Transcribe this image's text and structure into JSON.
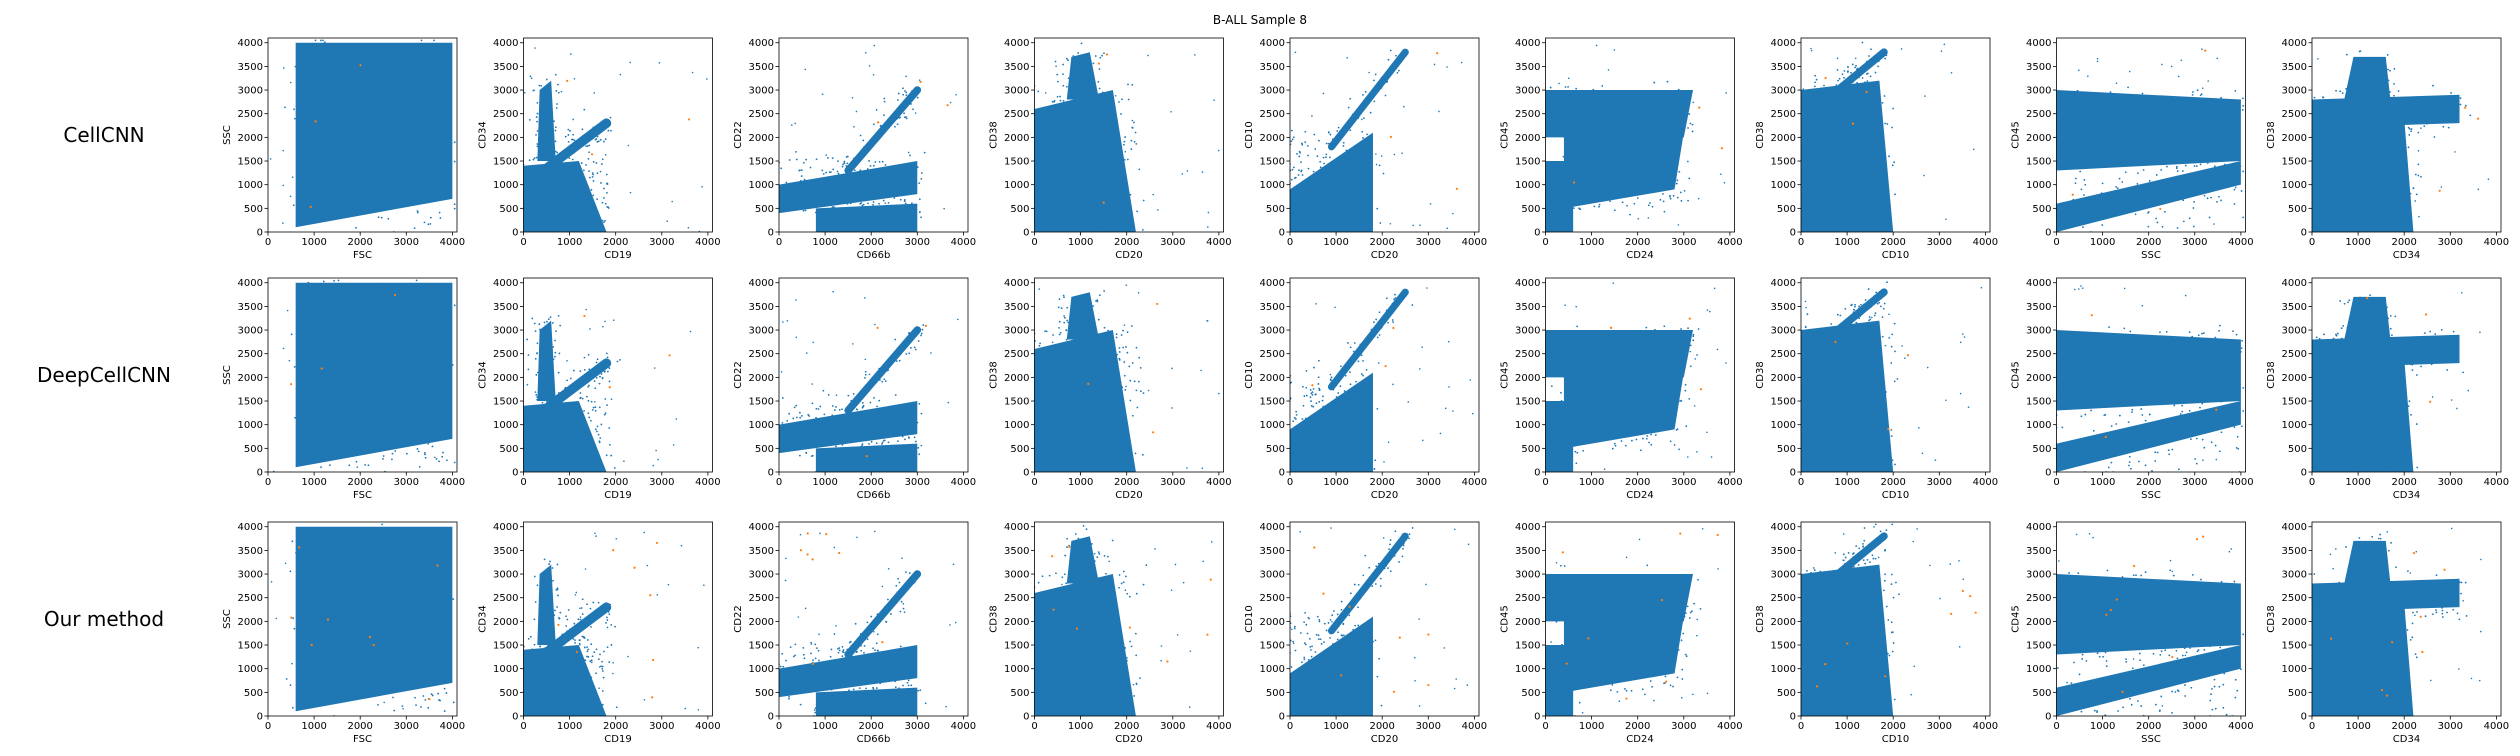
{
  "figure": {
    "title": "B-ALL Sample 8"
  },
  "colors": {
    "primary_cells": "#1f77b4",
    "highlight_cells": "#ff7f0e"
  },
  "chart_data": {
    "type": "scatter",
    "title": "B-ALL Sample 8",
    "rows": [
      "CellCNN",
      "DeepCellCNN",
      "Our method"
    ],
    "panels": [
      {
        "xlabel": "FSC",
        "ylabel": "SSC"
      },
      {
        "xlabel": "CD19",
        "ylabel": "CD34"
      },
      {
        "xlabel": "CD66b",
        "ylabel": "CD22"
      },
      {
        "xlabel": "CD20",
        "ylabel": "CD38"
      },
      {
        "xlabel": "CD20",
        "ylabel": "CD10"
      },
      {
        "xlabel": "CD24",
        "ylabel": "CD45"
      },
      {
        "xlabel": "CD10",
        "ylabel": "CD38"
      },
      {
        "xlabel": "SSC",
        "ylabel": "CD45"
      },
      {
        "xlabel": "CD34",
        "ylabel": "CD38"
      }
    ],
    "xlim": [
      0,
      4100
    ],
    "ylim": [
      0,
      4100
    ],
    "x_ticks": [
      0,
      1000,
      2000,
      3000,
      4000
    ],
    "y_ticks": [
      0,
      500,
      1000,
      1500,
      2000,
      2500,
      3000,
      3500,
      4000
    ],
    "grid": false,
    "series": [
      {
        "color": "#1f77b4"
      },
      {
        "color": "#ff7f0e"
      }
    ]
  }
}
